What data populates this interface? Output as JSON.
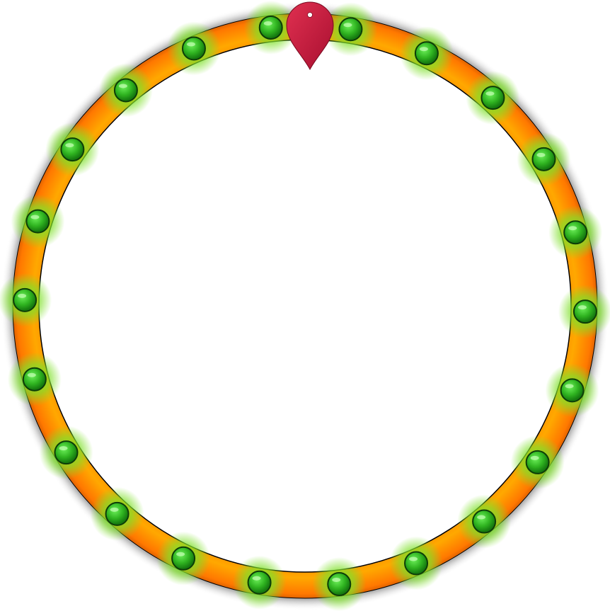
{
  "wheel": {
    "name": "prize-wheel",
    "segment_labels": [],
    "light_count": 22,
    "colors": {
      "ring": "#ffa400",
      "ring_edge": "#ff7a00",
      "inner_fill": "#ffffff",
      "outline": "#000000",
      "shadow": "#4a4a4a",
      "light": "#2fb320",
      "light_glow": "#7fe02a",
      "pointer": "#c2183e"
    }
  },
  "pointer": {
    "icon": "map-pin-icon"
  }
}
